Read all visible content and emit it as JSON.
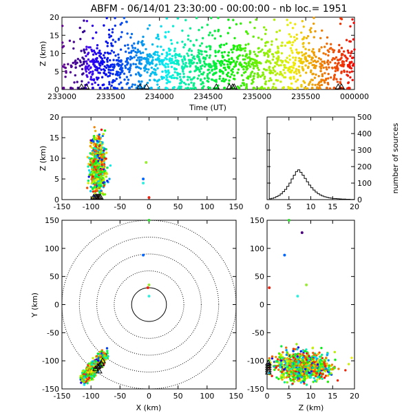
{
  "chart_data": [
    {
      "id": "time_height",
      "type": "scatter",
      "title": "ABFM - 06/14/01 23:30:00 - 00:00:00 - nb loc.=   1951",
      "xlabel": "Time (UT)",
      "ylabel": "Z (km)",
      "x_ticks": [
        "233000",
        "233500",
        "234000",
        "234500",
        "235000",
        "235500",
        "000000"
      ],
      "y_ticks": [
        "0",
        "5",
        "10",
        "15",
        "20"
      ],
      "ylim": [
        0,
        20
      ],
      "x_range_seconds_after_233000": [
        0,
        1800
      ],
      "color_scale": "rainbow by time (violet early to red late)",
      "station_markers_seconds": [
        120,
        150,
        480,
        520,
        950,
        1030,
        1050,
        1060,
        1700,
        1720
      ]
    },
    {
      "id": "xz_projection",
      "type": "scatter",
      "xlabel": "",
      "ylabel": "Z (km)",
      "x_ticks": [
        "-150",
        "-100",
        "-50",
        "0",
        "50",
        "100",
        "150"
      ],
      "y_ticks": [
        "0",
        "5",
        "10",
        "15",
        "20"
      ],
      "xlim": [
        -150,
        150
      ],
      "ylim": [
        0,
        20
      ],
      "cluster_center_x_km": -88,
      "cluster_z_range_km": [
        0,
        19
      ]
    },
    {
      "id": "height_histogram",
      "type": "line",
      "xlabel": "",
      "ylabel": "number of sources",
      "x_ticks": [
        "0",
        "5",
        "10",
        "15",
        "20"
      ],
      "y_ticks": [
        "0",
        "100",
        "200",
        "300",
        "400",
        "500"
      ],
      "xlim": [
        0,
        20
      ],
      "ylim": [
        0,
        500
      ],
      "x": [
        0,
        0.5,
        1,
        1.5,
        2,
        2.5,
        3,
        3.5,
        4,
        4.5,
        5,
        5.5,
        6,
        6.5,
        7,
        7.5,
        8,
        8.5,
        9,
        9.5,
        10,
        10.5,
        11,
        11.5,
        12,
        12.5,
        13,
        13.5,
        14,
        14.5,
        15,
        15.5,
        16,
        16.5,
        17,
        17.5,
        18,
        18.5,
        19,
        19.5
      ],
      "values": [
        400,
        5,
        8,
        12,
        18,
        25,
        35,
        48,
        62,
        80,
        100,
        125,
        148,
        170,
        180,
        165,
        148,
        128,
        108,
        88,
        72,
        58,
        46,
        36,
        28,
        22,
        17,
        14,
        11,
        9,
        7,
        6,
        5,
        4,
        3,
        3,
        2,
        2,
        1,
        1
      ]
    },
    {
      "id": "plan_view",
      "type": "scatter",
      "xlabel": "X (km)",
      "ylabel": "Y (km)",
      "x_ticks": [
        "-150",
        "-100",
        "-50",
        "0",
        "50",
        "100",
        "150"
      ],
      "y_ticks": [
        "-150",
        "-100",
        "-50",
        "0",
        "50",
        "100",
        "150"
      ],
      "xlim": [
        -150,
        150
      ],
      "ylim": [
        -150,
        150
      ],
      "range_rings_km": [
        30,
        60,
        90,
        120,
        150
      ],
      "isolated_points": [
        {
          "x": 0,
          "y": 150,
          "color": "#33dd33"
        },
        {
          "x": -10,
          "y": 88,
          "color": "#0066ff"
        },
        {
          "x": 0,
          "y": 35,
          "color": "#99ee33"
        },
        {
          "x": -2,
          "y": 30,
          "color": "#ee2211"
        },
        {
          "x": 0,
          "y": 15,
          "color": "#33eedd"
        }
      ]
    },
    {
      "id": "zy_projection",
      "type": "scatter",
      "xlabel": "Z (km)",
      "ylabel": "",
      "x_ticks": [
        "0",
        "5",
        "10",
        "15",
        "20"
      ],
      "y_ticks": [
        "-150",
        "-100",
        "-50",
        "0",
        "50",
        "100",
        "150"
      ],
      "xlim": [
        0,
        20
      ],
      "ylim": [
        -150,
        150
      ],
      "isolated_points": [
        {
          "z": 5,
          "y": 150,
          "color": "#33dd33"
        },
        {
          "z": 4,
          "y": 88,
          "color": "#0066ff"
        },
        {
          "z": 9,
          "y": 35,
          "color": "#99ee33"
        },
        {
          "z": 0.5,
          "y": 30,
          "color": "#ee2211"
        },
        {
          "z": 7,
          "y": 15,
          "color": "#33eedd"
        },
        {
          "z": 8,
          "y": 128,
          "color": "#4b0082"
        }
      ]
    }
  ]
}
